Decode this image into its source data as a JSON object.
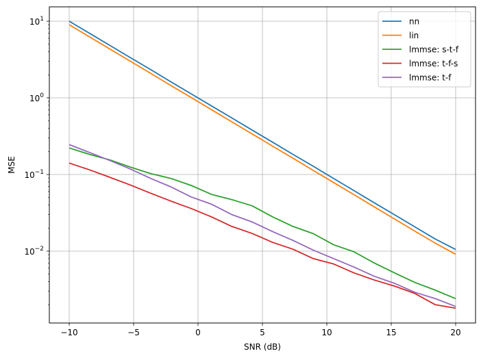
{
  "chart_data": {
    "type": "line",
    "title": "",
    "xlabel": "SNR (dB)",
    "ylabel": "MSE",
    "yscale": "log",
    "xlim": [
      -11.5,
      21.5
    ],
    "ylim": [
      0.0012,
      15
    ],
    "grid": true,
    "legend_position": "upper right",
    "xticks": [
      -10,
      -5,
      0,
      5,
      10,
      15,
      20
    ],
    "xtick_labels": [
      "−10",
      "−5",
      "0",
      "5",
      "10",
      "15",
      "20"
    ],
    "yticks": [
      10,
      1,
      0.1,
      0.01
    ],
    "ytick_labels": [
      {
        "base": "10",
        "exp": "1"
      },
      {
        "base": "10",
        "exp": "0"
      },
      {
        "base": "10",
        "exp": "−1"
      },
      {
        "base": "10",
        "exp": "−2"
      }
    ],
    "x": [
      -10,
      -8.42,
      -6.84,
      -5.26,
      -3.68,
      -2.11,
      -0.53,
      1.05,
      2.63,
      4.21,
      5.79,
      7.37,
      8.95,
      10.53,
      12.11,
      13.68,
      15.26,
      16.84,
      18.42,
      20
    ],
    "series": [
      {
        "name": "nn",
        "color": "#1f77b4",
        "values": [
          10.0,
          6.95,
          4.83,
          3.36,
          2.34,
          1.62,
          1.13,
          0.785,
          0.546,
          0.379,
          0.264,
          0.183,
          0.128,
          0.0886,
          0.0616,
          0.0428,
          0.0298,
          0.0207,
          0.0144,
          0.0105
        ]
      },
      {
        "name": "lin",
        "color": "#ff7f0e",
        "values": [
          9.0,
          6.24,
          4.33,
          3.01,
          2.09,
          1.45,
          1.01,
          0.7,
          0.486,
          0.338,
          0.234,
          0.163,
          0.113,
          0.0785,
          0.0545,
          0.0378,
          0.0263,
          0.0182,
          0.0127,
          0.0091
        ]
      },
      {
        "name": "lmmse: s-t-f",
        "color": "#2ca02c",
        "values": [
          0.222,
          0.183,
          0.155,
          0.125,
          0.103,
          0.089,
          0.072,
          0.055,
          0.047,
          0.039,
          0.028,
          0.021,
          0.0169,
          0.0121,
          0.0098,
          0.007,
          0.0052,
          0.0039,
          0.0031,
          0.0024
        ]
      },
      {
        "name": "lmmse: t-f-s",
        "color": "#d62728",
        "values": [
          0.141,
          0.115,
          0.092,
          0.073,
          0.057,
          0.045,
          0.036,
          0.028,
          0.021,
          0.017,
          0.013,
          0.0106,
          0.008,
          0.0068,
          0.0052,
          0.0042,
          0.0035,
          0.0028,
          0.002,
          0.0018
        ]
      },
      {
        "name": "lmmse: t-f",
        "color": "#9467bd",
        "values": [
          0.245,
          0.194,
          0.152,
          0.118,
          0.089,
          0.069,
          0.051,
          0.041,
          0.03,
          0.024,
          0.018,
          0.0138,
          0.0103,
          0.008,
          0.0062,
          0.0047,
          0.0038,
          0.0029,
          0.0024,
          0.0019
        ]
      }
    ]
  },
  "legend": {
    "items": [
      {
        "label": "nn",
        "color": "#1f77b4"
      },
      {
        "label": "lin",
        "color": "#ff7f0e"
      },
      {
        "label": "lmmse: s-t-f",
        "color": "#2ca02c"
      },
      {
        "label": "lmmse: t-f-s",
        "color": "#d62728"
      },
      {
        "label": "lmmse: t-f",
        "color": "#9467bd"
      }
    ]
  },
  "axes": {
    "xlabel": "SNR (dB)",
    "ylabel": "MSE"
  }
}
